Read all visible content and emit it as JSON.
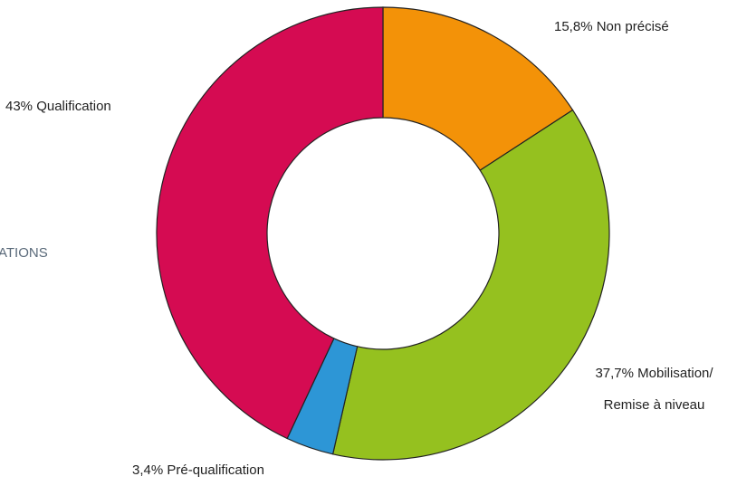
{
  "chart_data": {
    "type": "donut",
    "categories": [
      "Non précisé",
      "Mobilisation/ Remise à niveau",
      "Pré-qualification",
      "Qualification"
    ],
    "values": [
      15.8,
      37.7,
      3.4,
      43
    ],
    "value_labels": [
      "15,8%",
      "37,7%",
      "3,4%",
      "43%"
    ],
    "colors": [
      "#f39208",
      "#95c11f",
      "#2d96d6",
      "#d50b52"
    ],
    "side_label": "ATIONS"
  }
}
